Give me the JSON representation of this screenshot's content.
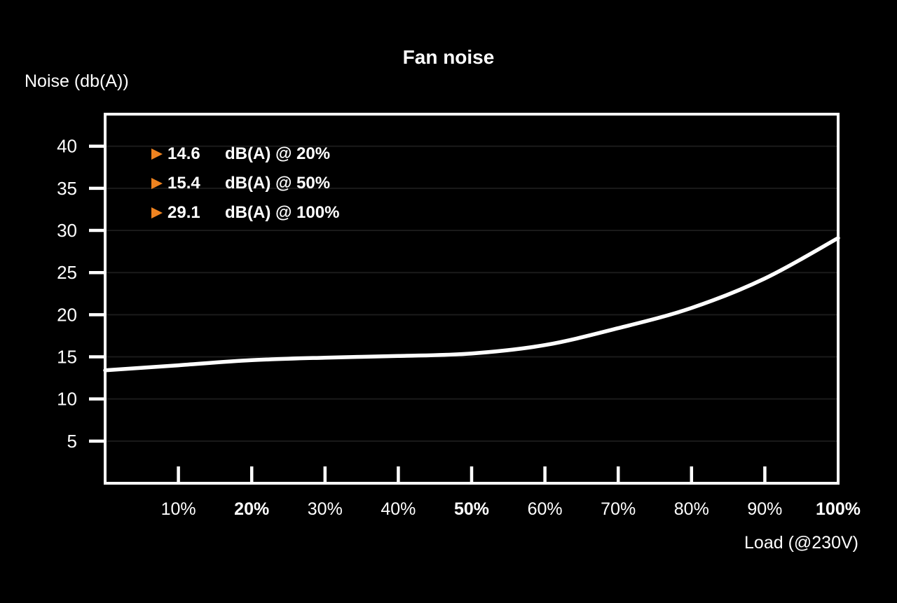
{
  "chart_data": {
    "type": "line",
    "title": "Fan noise",
    "ylabel": "Noise (db(A))",
    "xlabel": "Load (@230V)",
    "xlim": [
      0,
      100
    ],
    "ylim": [
      0,
      43.8
    ],
    "grid": "horizontal-only",
    "legend_position": "top-left-inside",
    "background_color": "#000000",
    "axis_color": "#ffffff",
    "grid_color": "#1a1a1a",
    "line_color": "#ffffff",
    "accent_color": "#ef8320",
    "x_ticks": [
      {
        "value": 10,
        "label": "10%",
        "bold": false
      },
      {
        "value": 20,
        "label": "20%",
        "bold": true
      },
      {
        "value": 30,
        "label": "30%",
        "bold": false
      },
      {
        "value": 40,
        "label": "40%",
        "bold": false
      },
      {
        "value": 50,
        "label": "50%",
        "bold": true
      },
      {
        "value": 60,
        "label": "60%",
        "bold": false
      },
      {
        "value": 70,
        "label": "70%",
        "bold": false
      },
      {
        "value": 80,
        "label": "80%",
        "bold": false
      },
      {
        "value": 90,
        "label": "90%",
        "bold": false
      },
      {
        "value": 100,
        "label": "100%",
        "bold": true
      }
    ],
    "y_ticks": [
      {
        "value": 5,
        "label": "5"
      },
      {
        "value": 10,
        "label": "10"
      },
      {
        "value": 15,
        "label": "15"
      },
      {
        "value": 20,
        "label": "20"
      },
      {
        "value": 25,
        "label": "25"
      },
      {
        "value": 30,
        "label": "30"
      },
      {
        "value": 35,
        "label": "35"
      },
      {
        "value": 40,
        "label": "40"
      }
    ],
    "series": [
      {
        "name": "fan-noise-db",
        "x": [
          0,
          10,
          20,
          30,
          40,
          50,
          60,
          70,
          80,
          90,
          100
        ],
        "y": [
          13.4,
          14.0,
          14.6,
          14.9,
          15.1,
          15.4,
          16.4,
          18.4,
          20.8,
          24.3,
          29.1
        ]
      }
    ],
    "callouts": [
      {
        "value": "14.6",
        "label": "dB(A) @ 20%"
      },
      {
        "value": "15.4",
        "label": "dB(A) @ 50%"
      },
      {
        "value": "29.1",
        "label": "dB(A) @ 100%"
      }
    ]
  }
}
